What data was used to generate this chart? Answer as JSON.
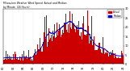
{
  "title": "Milwaukee Weather Wind Speed  Actual and Median  by Minute  (24 Hours) (Old)",
  "legend_actual": "Actual",
  "legend_median": "Median",
  "actual_color": "#cc0000",
  "median_color": "#0000cc",
  "background_color": "#ffffff",
  "grid_color": "#cccccc",
  "n_minutes": 1440,
  "ylim": [
    0,
    30
  ],
  "ylabel_right": true
}
